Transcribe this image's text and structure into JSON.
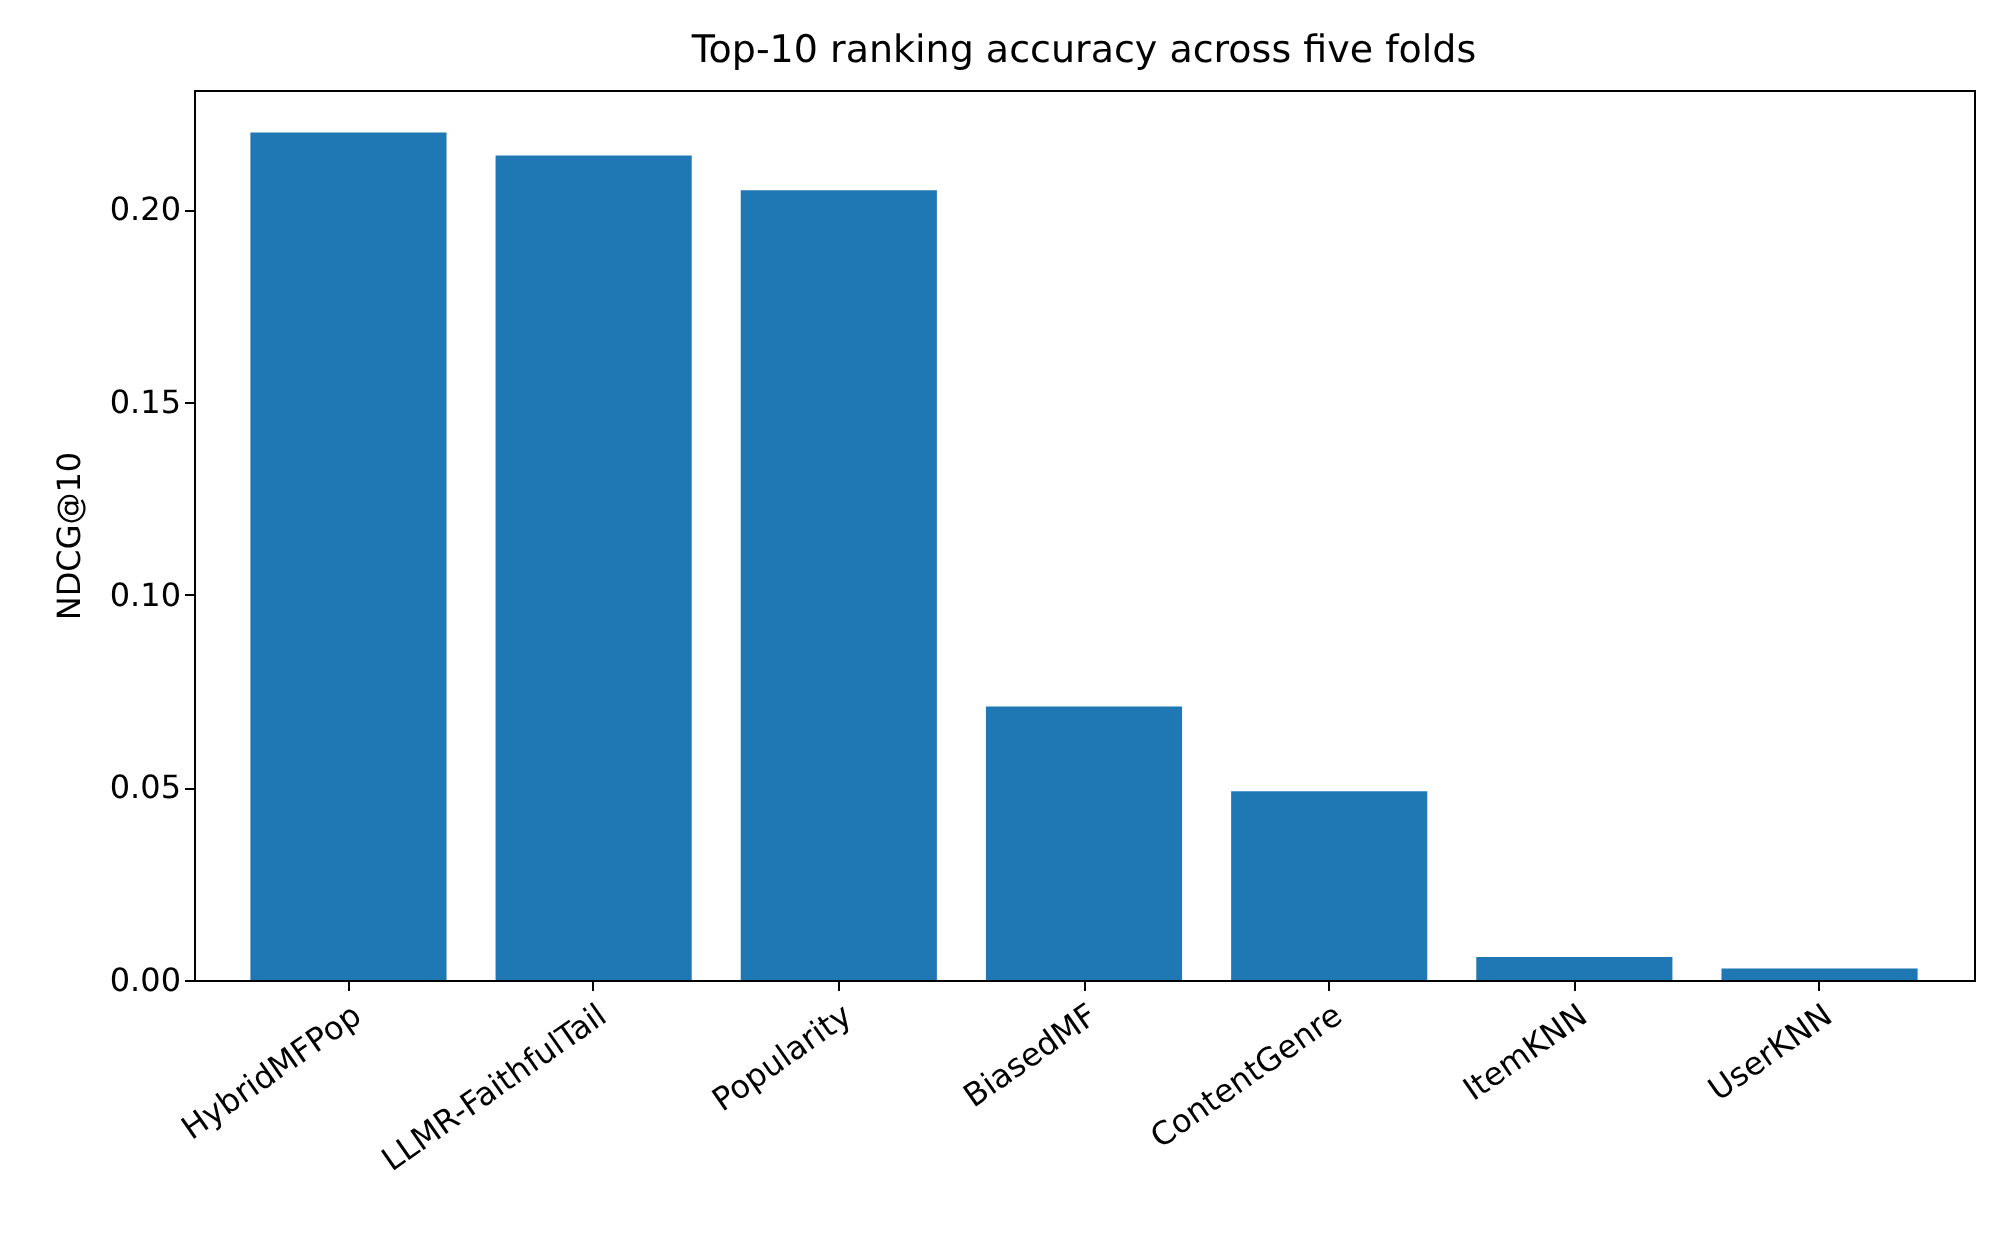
{
  "chart_data": {
    "type": "bar",
    "title": "Top-10 ranking accuracy across five folds",
    "ylabel": "NDCG@10",
    "categories": [
      "HybridMFPop",
      "LLMR-FaithfulTail",
      "Popularity",
      "BiasedMF",
      "ContentGenre",
      "ItemKNN",
      "UserKNN"
    ],
    "values": [
      0.22,
      0.214,
      0.205,
      0.071,
      0.049,
      0.006,
      0.003
    ],
    "color": "#1f77b4",
    "ylim": [
      0,
      0.231
    ],
    "yticks": [
      {
        "value": 0,
        "label": "0.00"
      },
      {
        "value": 0.05,
        "label": "0.05"
      },
      {
        "value": 0.1,
        "label": "0.10"
      },
      {
        "value": 0.15,
        "label": "0.15"
      },
      {
        "value": 0.2,
        "label": "0.20"
      }
    ],
    "grid": false
  }
}
